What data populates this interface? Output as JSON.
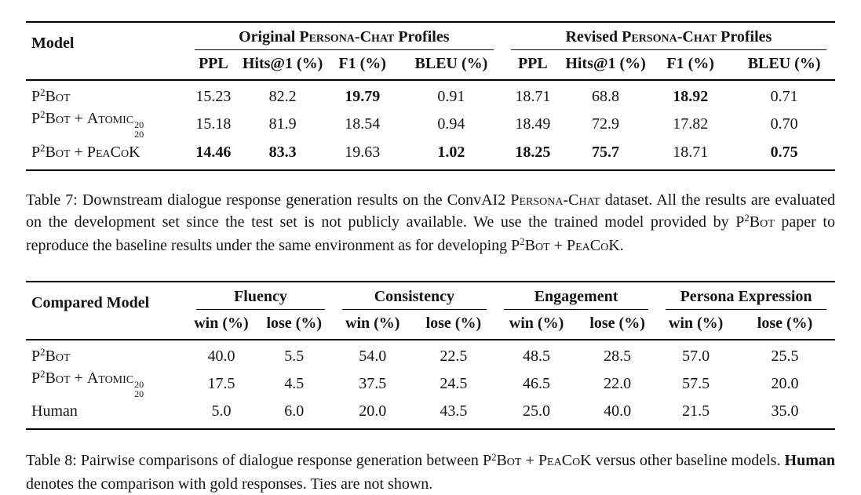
{
  "page": {
    "background_color": "#ffffff",
    "text_color": "#141414",
    "rule_color": "#000000"
  },
  "table7": {
    "model_header": "Model",
    "groups": [
      {
        "segments": [
          {
            "text": "Original "
          },
          {
            "text": "Persona-Chat",
            "style": "sc"
          },
          {
            "text": " Profiles"
          }
        ]
      },
      {
        "segments": [
          {
            "text": "Revised "
          },
          {
            "text": "Persona-Chat",
            "style": "sc"
          },
          {
            "text": " Profiles"
          }
        ]
      }
    ],
    "sub_headers": [
      "PPL",
      "Hits@1 (%)",
      "F1 (%)",
      "BLEU (%)",
      "PPL",
      "Hits@1 (%)",
      "F1 (%)",
      "BLEU (%)"
    ],
    "rows": [
      {
        "model_segments": [
          {
            "text": "P"
          },
          {
            "text": "2",
            "style": "sup"
          },
          {
            "text": "Bot",
            "style": "sc"
          }
        ],
        "cells": [
          {
            "v": "15.23"
          },
          {
            "v": "82.2"
          },
          {
            "v": "19.79",
            "bold": true
          },
          {
            "v": "0.91"
          },
          {
            "v": "18.71"
          },
          {
            "v": "68.8"
          },
          {
            "v": "18.92",
            "bold": true
          },
          {
            "v": "0.71"
          }
        ]
      },
      {
        "model_segments": [
          {
            "text": "P"
          },
          {
            "text": "2",
            "style": "sup"
          },
          {
            "text": "Bot",
            "style": "sc"
          },
          {
            "text": " + "
          },
          {
            "text": "Atomic",
            "style": "sc"
          },
          {
            "style": "stack",
            "sup": "20",
            "sub": "20"
          }
        ],
        "cells": [
          {
            "v": "15.18"
          },
          {
            "v": "81.9"
          },
          {
            "v": "18.54"
          },
          {
            "v": "0.94"
          },
          {
            "v": "18.49"
          },
          {
            "v": "72.9"
          },
          {
            "v": "17.82"
          },
          {
            "v": "0.70"
          }
        ]
      },
      {
        "model_segments": [
          {
            "text": "P"
          },
          {
            "text": "2",
            "style": "sup"
          },
          {
            "text": "Bot",
            "style": "sc"
          },
          {
            "text": " + "
          },
          {
            "text": "PeaCoK",
            "style": "sc"
          }
        ],
        "cells": [
          {
            "v": "14.46",
            "bold": true
          },
          {
            "v": "83.3",
            "bold": true
          },
          {
            "v": "19.63"
          },
          {
            "v": "1.02",
            "bold": true
          },
          {
            "v": "18.25",
            "bold": true
          },
          {
            "v": "75.7",
            "bold": true
          },
          {
            "v": "18.71"
          },
          {
            "v": "0.75",
            "bold": true
          }
        ]
      }
    ],
    "caption_segments": [
      {
        "text": "Table 7: Downstream dialogue response generation results on the ConvAI2 "
      },
      {
        "text": "Persona-Chat",
        "style": "sc"
      },
      {
        "text": " dataset. All the results are evaluated on the development set since the test set is not publicly available. We use the trained model provided by P"
      },
      {
        "text": "2",
        "style": "sup"
      },
      {
        "text": "Bot",
        "style": "sc"
      },
      {
        "text": " paper to reproduce the baseline results under the same environment as for developing P"
      },
      {
        "text": "2",
        "style": "sup"
      },
      {
        "text": "Bot",
        "style": "sc"
      },
      {
        "text": " + "
      },
      {
        "text": "PeaCoK",
        "style": "sc"
      },
      {
        "text": "."
      }
    ]
  },
  "table8": {
    "model_header": "Compared Model",
    "groups": [
      {
        "label": "Fluency"
      },
      {
        "label": "Consistency"
      },
      {
        "label": "Engagement"
      },
      {
        "label": "Persona Expression"
      }
    ],
    "sub_headers": [
      "win (%)",
      "lose (%)",
      "win (%)",
      "lose (%)",
      "win (%)",
      "lose (%)",
      "win (%)",
      "lose (%)"
    ],
    "rows": [
      {
        "model_segments": [
          {
            "text": "P"
          },
          {
            "text": "2",
            "style": "sup"
          },
          {
            "text": "Bot",
            "style": "sc"
          }
        ],
        "cells": [
          {
            "v": "40.0"
          },
          {
            "v": "5.5"
          },
          {
            "v": "54.0"
          },
          {
            "v": "22.5"
          },
          {
            "v": "48.5"
          },
          {
            "v": "28.5"
          },
          {
            "v": "57.0"
          },
          {
            "v": "25.5"
          }
        ]
      },
      {
        "model_segments": [
          {
            "text": "P"
          },
          {
            "text": "2",
            "style": "sup"
          },
          {
            "text": "Bot",
            "style": "sc"
          },
          {
            "text": " + "
          },
          {
            "text": "Atomic",
            "style": "sc"
          },
          {
            "style": "stack",
            "sup": "20",
            "sub": "20"
          }
        ],
        "cells": [
          {
            "v": "17.5"
          },
          {
            "v": "4.5"
          },
          {
            "v": "37.5"
          },
          {
            "v": "24.5"
          },
          {
            "v": "46.5"
          },
          {
            "v": "22.0"
          },
          {
            "v": "57.5"
          },
          {
            "v": "20.0"
          }
        ]
      },
      {
        "model_segments": [
          {
            "text": "Human"
          }
        ],
        "cells": [
          {
            "v": "5.0"
          },
          {
            "v": "6.0"
          },
          {
            "v": "20.0"
          },
          {
            "v": "43.5"
          },
          {
            "v": "25.0"
          },
          {
            "v": "40.0"
          },
          {
            "v": "21.5"
          },
          {
            "v": "35.0"
          }
        ]
      }
    ],
    "caption_segments": [
      {
        "text": "Table 8: Pairwise comparisons of dialogue response generation between P"
      },
      {
        "text": "2",
        "style": "sup"
      },
      {
        "text": "Bot",
        "style": "sc"
      },
      {
        "text": " + "
      },
      {
        "text": "PeaCoK",
        "style": "sc"
      },
      {
        "text": " versus other baseline models. "
      },
      {
        "text": "Human",
        "style": "bold"
      },
      {
        "text": " denotes the comparison with gold responses. Ties are not shown."
      }
    ]
  }
}
